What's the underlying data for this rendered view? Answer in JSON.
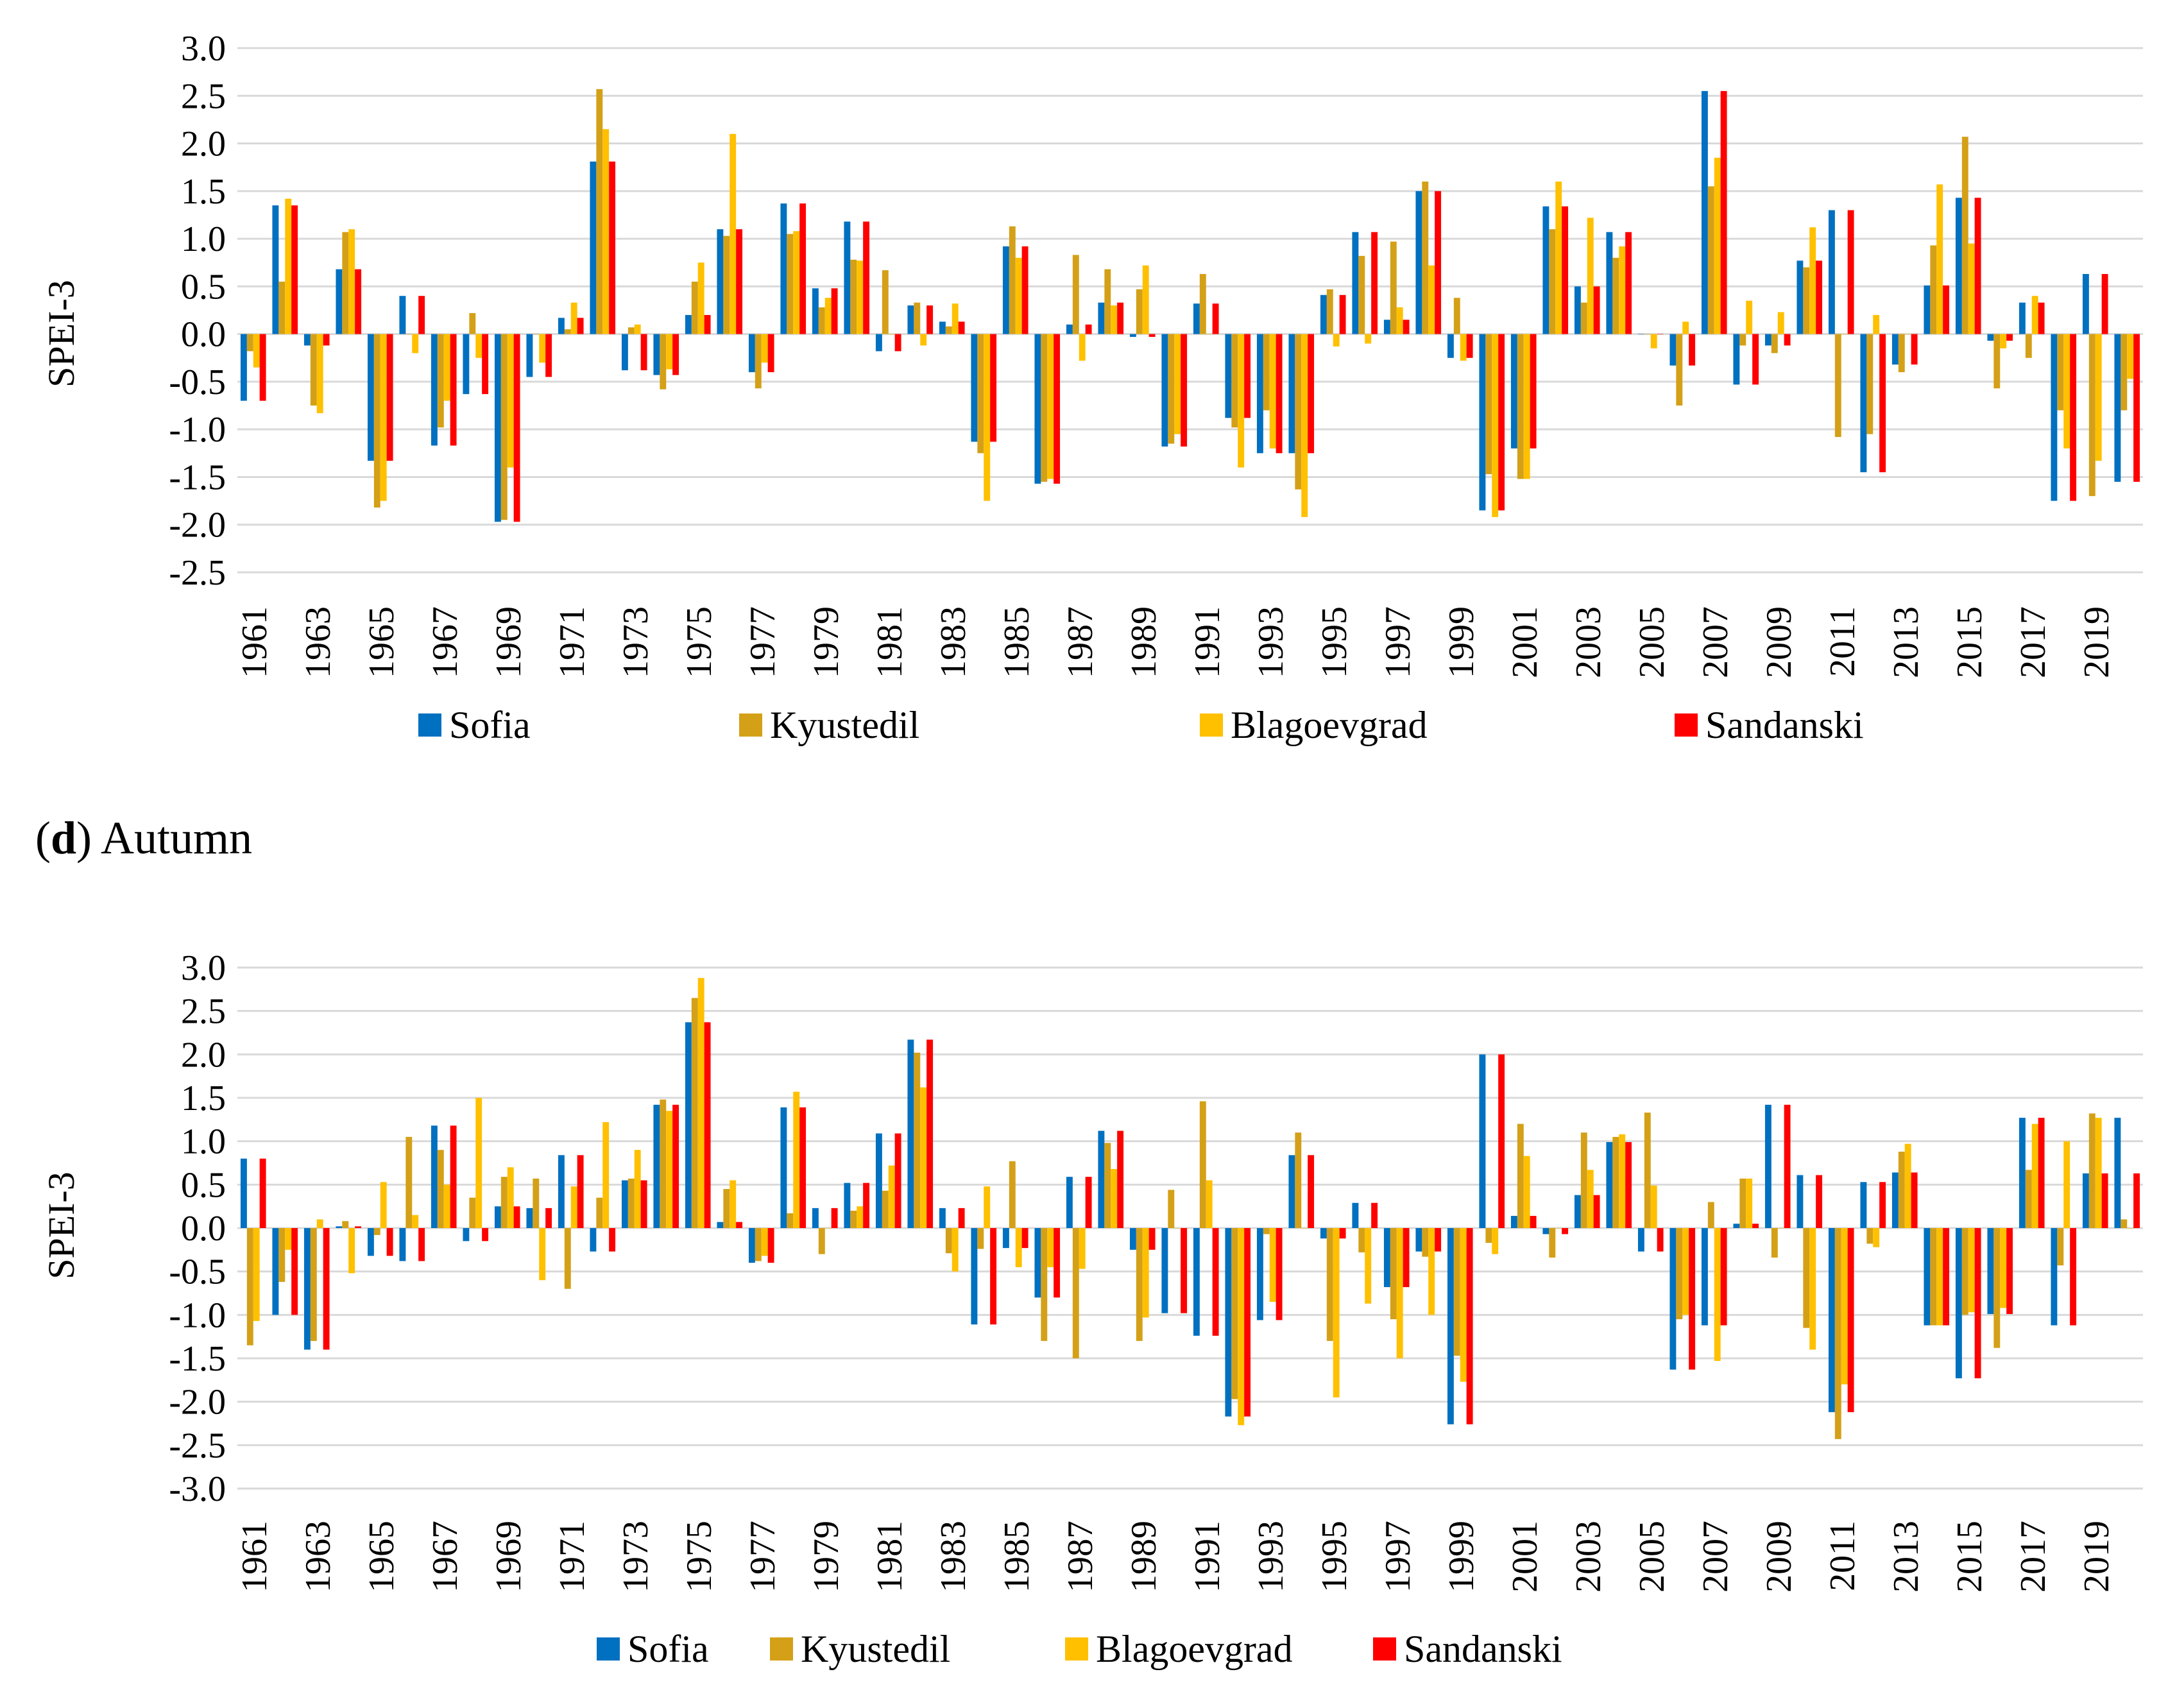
{
  "colors": {
    "Sofia": "#0070C0",
    "Kyustedil": "#D4A017",
    "Blagoevgrad": "#FFC000",
    "Sandanski": "#FF0000",
    "grid": "#d9d9d9"
  },
  "panel_d_label": {
    "prefix": "(",
    "letter": "d",
    "suffix": ") Autumn"
  },
  "chart_data": [
    {
      "type": "bar",
      "title": "",
      "ylabel": "SPEI-3",
      "xlabel": "",
      "ylim": [
        -2.5,
        3.0
      ],
      "yticks": [
        "3.0",
        "2.5",
        "2.0",
        "1.5",
        "1.0",
        "0.5",
        "0.0",
        "-0.5",
        "-1.0",
        "-1.5",
        "-2.0",
        "-2.5"
      ],
      "xticklabels": [
        "1961",
        "1963",
        "1965",
        "1967",
        "1969",
        "1971",
        "1973",
        "1975",
        "1977",
        "1979",
        "1981",
        "1983",
        "1985",
        "1987",
        "1989",
        "1991",
        "1993",
        "1995",
        "1997",
        "1999",
        "2001",
        "2003",
        "2005",
        "2007",
        "2009",
        "2011",
        "2013",
        "2015",
        "2017",
        "2019"
      ],
      "legend": [
        "Sofia",
        "Kyustedil",
        "Blagoevgrad",
        "Sandanski"
      ],
      "years": [
        1961,
        1962,
        1963,
        1964,
        1965,
        1966,
        1967,
        1968,
        1969,
        1970,
        1971,
        1972,
        1973,
        1974,
        1975,
        1976,
        1977,
        1978,
        1979,
        1980,
        1981,
        1982,
        1983,
        1984,
        1985,
        1986,
        1987,
        1988,
        1989,
        1990,
        1991,
        1992,
        1993,
        1994,
        1995,
        1996,
        1997,
        1998,
        1999,
        2000,
        2001,
        2002,
        2003,
        2004,
        2005,
        2006,
        2007,
        2008,
        2009,
        2010,
        2011,
        2012,
        2013,
        2014,
        2015,
        2016,
        2017,
        2018,
        2019,
        2020
      ],
      "series": [
        {
          "name": "Sofia",
          "values": [
            -0.7,
            1.35,
            -0.12,
            0.68,
            -1.33,
            0.4,
            -1.17,
            -0.63,
            -1.97,
            -0.45,
            0.17,
            1.81,
            -0.38,
            -0.43,
            0.2,
            1.1,
            -0.4,
            1.37,
            0.48,
            1.18,
            -0.18,
            0.3,
            0.13,
            -1.13,
            0.92,
            -1.57,
            0.1,
            0.33,
            -0.03,
            -1.18,
            0.32,
            -0.88,
            -1.25,
            -1.25,
            0.41,
            1.07,
            0.15,
            1.5,
            -0.25,
            -1.85,
            -1.2,
            1.34,
            0.5,
            1.07,
            0.0,
            -0.33,
            2.55,
            -0.53,
            -0.12,
            0.77,
            1.3,
            -1.45,
            -0.32,
            0.51,
            1.43,
            -0.07,
            0.33,
            -1.75,
            0.63,
            -1.55
          ]
        },
        {
          "name": "Kyustedil",
          "values": [
            -0.18,
            0.55,
            -0.75,
            1.07,
            -1.82,
            0.0,
            -0.98,
            0.22,
            -1.95,
            0.0,
            0.05,
            2.57,
            0.07,
            -0.58,
            0.55,
            1.03,
            -0.57,
            1.05,
            0.28,
            0.78,
            0.67,
            0.33,
            0.08,
            -1.25,
            1.13,
            -1.55,
            0.83,
            0.68,
            0.47,
            -1.15,
            0.63,
            -0.98,
            -0.8,
            -1.63,
            0.47,
            0.82,
            0.97,
            1.6,
            0.38,
            -1.47,
            -1.52,
            1.1,
            0.33,
            0.8,
            0.0,
            -0.75,
            1.55,
            -0.12,
            -0.2,
            0.7,
            -1.08,
            -1.05,
            -0.4,
            0.93,
            2.07,
            -0.57,
            -0.25,
            -0.8,
            -1.7,
            -0.8
          ]
        },
        {
          "name": "Blagoevgrad",
          "values": [
            -0.35,
            1.42,
            -0.83,
            1.1,
            -1.75,
            -0.2,
            -0.7,
            -0.25,
            -1.4,
            -0.3,
            0.33,
            2.15,
            0.1,
            -0.37,
            0.75,
            2.1,
            -0.3,
            1.08,
            0.38,
            0.77,
            0.0,
            -0.12,
            0.32,
            -1.75,
            0.8,
            -1.52,
            -0.28,
            0.3,
            0.72,
            -1.05,
            0.0,
            -1.4,
            -1.2,
            -1.92,
            -0.13,
            -0.1,
            0.28,
            0.72,
            -0.28,
            -1.92,
            -1.52,
            1.6,
            1.22,
            0.92,
            -0.15,
            0.13,
            1.85,
            0.35,
            0.23,
            1.12,
            0.0,
            0.2,
            0.0,
            1.57,
            0.95,
            -0.15,
            0.4,
            -1.2,
            -1.33,
            -0.47
          ]
        },
        {
          "name": "Sandanski",
          "values": [
            -0.7,
            1.35,
            -0.12,
            0.68,
            -1.33,
            0.4,
            -1.17,
            -0.63,
            -1.97,
            -0.45,
            0.17,
            1.81,
            -0.38,
            -0.43,
            0.2,
            1.1,
            -0.4,
            1.37,
            0.48,
            1.18,
            -0.18,
            0.3,
            0.13,
            -1.13,
            0.92,
            -1.57,
            0.1,
            0.33,
            -0.03,
            -1.18,
            0.32,
            -0.88,
            -1.25,
            -1.25,
            0.41,
            1.07,
            0.15,
            1.5,
            -0.25,
            -1.85,
            -1.2,
            1.34,
            0.5,
            1.07,
            0.0,
            -0.33,
            2.55,
            -0.53,
            -0.12,
            0.77,
            1.3,
            -1.45,
            -0.32,
            0.51,
            1.43,
            -0.07,
            0.33,
            -1.75,
            0.63,
            -1.55
          ]
        }
      ]
    },
    {
      "type": "bar",
      "title": "",
      "ylabel": "SPEI-3",
      "xlabel": "",
      "ylim": [
        -3.0,
        3.0
      ],
      "yticks": [
        "3.0",
        "2.5",
        "2.0",
        "1.5",
        "1.0",
        "0.5",
        "0.0",
        "-0.5",
        "-1.0",
        "-1.5",
        "-2.0",
        "-2.5",
        "-3.0"
      ],
      "xticklabels": [
        "1961",
        "1963",
        "1965",
        "1967",
        "1969",
        "1971",
        "1973",
        "1975",
        "1977",
        "1979",
        "1981",
        "1983",
        "1985",
        "1987",
        "1989",
        "1991",
        "1993",
        "1995",
        "1997",
        "1999",
        "2001",
        "2003",
        "2005",
        "2007",
        "2009",
        "2011",
        "2013",
        "2015",
        "2017",
        "2019"
      ],
      "legend": [
        "Sofia",
        "Kyustedil",
        "Blagoevgrad",
        "Sandanski"
      ],
      "years": [
        1961,
        1962,
        1963,
        1964,
        1965,
        1966,
        1967,
        1968,
        1969,
        1970,
        1971,
        1972,
        1973,
        1974,
        1975,
        1976,
        1977,
        1978,
        1979,
        1980,
        1981,
        1982,
        1983,
        1984,
        1985,
        1986,
        1987,
        1988,
        1989,
        1990,
        1991,
        1992,
        1993,
        1994,
        1995,
        1996,
        1997,
        1998,
        1999,
        2000,
        2001,
        2002,
        2003,
        2004,
        2005,
        2006,
        2007,
        2008,
        2009,
        2010,
        2011,
        2012,
        2013,
        2014,
        2015,
        2016,
        2017,
        2018,
        2019,
        2020
      ],
      "series": [
        {
          "name": "Sofia",
          "values": [
            0.8,
            -1.0,
            -1.4,
            0.02,
            -0.32,
            -0.38,
            1.18,
            -0.15,
            0.25,
            0.23,
            0.84,
            -0.27,
            0.55,
            1.42,
            2.37,
            0.07,
            -0.4,
            1.39,
            0.23,
            0.52,
            1.09,
            2.17,
            0.23,
            -1.11,
            -0.23,
            -0.8,
            0.59,
            1.12,
            -0.25,
            -0.98,
            -1.24,
            -2.17,
            -1.06,
            0.84,
            -0.12,
            0.29,
            -0.68,
            -0.27,
            -2.26,
            2.0,
            0.14,
            -0.07,
            0.38,
            0.99,
            -0.27,
            -1.63,
            -1.12,
            0.05,
            1.42,
            0.61,
            -2.12,
            0.53,
            0.64,
            -1.12,
            -1.73,
            -0.99,
            1.27,
            -1.12,
            0.63,
            1.27
          ]
        },
        {
          "name": "Kyustedil",
          "values": [
            -1.35,
            -0.62,
            -1.3,
            0.08,
            -0.08,
            1.05,
            0.9,
            0.35,
            0.59,
            0.57,
            -0.7,
            0.35,
            0.57,
            1.48,
            2.65,
            0.45,
            -0.38,
            0.17,
            -0.3,
            0.2,
            0.43,
            2.02,
            -0.29,
            -0.24,
            0.77,
            -1.3,
            -1.5,
            0.98,
            -1.3,
            0.44,
            1.46,
            -1.97,
            -0.07,
            1.1,
            -1.3,
            -0.28,
            -1.05,
            -0.33,
            -1.47,
            -0.17,
            1.2,
            -0.34,
            1.1,
            1.05,
            1.33,
            -1.05,
            0.3,
            0.57,
            -0.34,
            -1.15,
            -2.43,
            -0.18,
            0.88,
            -1.12,
            -1.0,
            -1.38,
            0.67,
            -0.43,
            1.32,
            0.1
          ]
        },
        {
          "name": "Blagoevgrad",
          "values": [
            -1.07,
            -0.25,
            0.1,
            -0.52,
            0.53,
            0.15,
            0.5,
            1.5,
            0.7,
            -0.6,
            0.48,
            1.22,
            0.9,
            1.35,
            2.88,
            0.55,
            -0.32,
            1.57,
            0.0,
            0.25,
            0.72,
            1.62,
            -0.5,
            0.48,
            -0.45,
            -0.45,
            -0.47,
            0.68,
            -1.03,
            0.0,
            0.55,
            -2.27,
            -0.85,
            0.0,
            -1.95,
            -0.87,
            -1.5,
            -1.0,
            -1.77,
            -0.3,
            0.83,
            0.0,
            0.67,
            1.08,
            0.49,
            -1.0,
            -1.53,
            0.57,
            0.0,
            -1.4,
            -1.8,
            -0.22,
            0.97,
            -1.12,
            -0.97,
            -0.92,
            1.2,
            1.0,
            1.27,
            0.0
          ]
        },
        {
          "name": "Sandanski",
          "values": [
            0.8,
            -1.0,
            -1.4,
            0.02,
            -0.32,
            -0.38,
            1.18,
            -0.15,
            0.25,
            0.23,
            0.84,
            -0.27,
            0.55,
            1.42,
            2.37,
            0.07,
            -0.4,
            1.39,
            0.23,
            0.52,
            1.09,
            2.17,
            0.23,
            -1.11,
            -0.23,
            -0.8,
            0.59,
            1.12,
            -0.25,
            -0.98,
            -1.24,
            -2.17,
            -1.06,
            0.84,
            -0.12,
            0.29,
            -0.68,
            -0.27,
            -2.26,
            2.0,
            0.14,
            -0.07,
            0.38,
            0.99,
            -0.27,
            -1.63,
            -1.12,
            0.05,
            1.42,
            0.61,
            -2.12,
            0.53,
            0.64,
            -1.12,
            -1.73,
            -0.99,
            1.27,
            -1.12,
            0.63,
            0.63
          ]
        }
      ]
    }
  ]
}
